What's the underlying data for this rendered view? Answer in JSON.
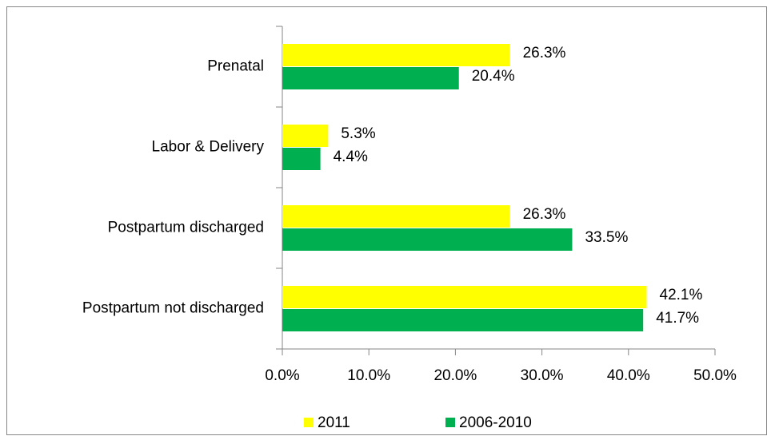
{
  "chart_data": {
    "type": "bar",
    "orientation": "horizontal",
    "categories": [
      "Prenatal",
      "Labor & Delivery",
      "Postpartum discharged",
      "Postpartum not discharged"
    ],
    "series": [
      {
        "name": "2011",
        "color": "#ffff00",
        "values": [
          26.3,
          5.3,
          26.3,
          42.1
        ],
        "value_labels": [
          "26.3%",
          "5.3%",
          "26.3%",
          "42.1%"
        ]
      },
      {
        "name": "2006-2010",
        "color": "#00b050",
        "values": [
          20.4,
          4.4,
          33.5,
          41.7
        ],
        "value_labels": [
          "20.4%",
          "4.4%",
          "33.5%",
          "41.7%"
        ]
      }
    ],
    "xlim": [
      0,
      50
    ],
    "xticks": [
      {
        "value": 0,
        "label": "0.0%"
      },
      {
        "value": 10,
        "label": "10.0%"
      },
      {
        "value": 20,
        "label": "20.0%"
      },
      {
        "value": 30,
        "label": "30.0%"
      },
      {
        "value": 40,
        "label": "40.0%"
      },
      {
        "value": 50,
        "label": "50.0%"
      }
    ],
    "legend": "bottom"
  }
}
